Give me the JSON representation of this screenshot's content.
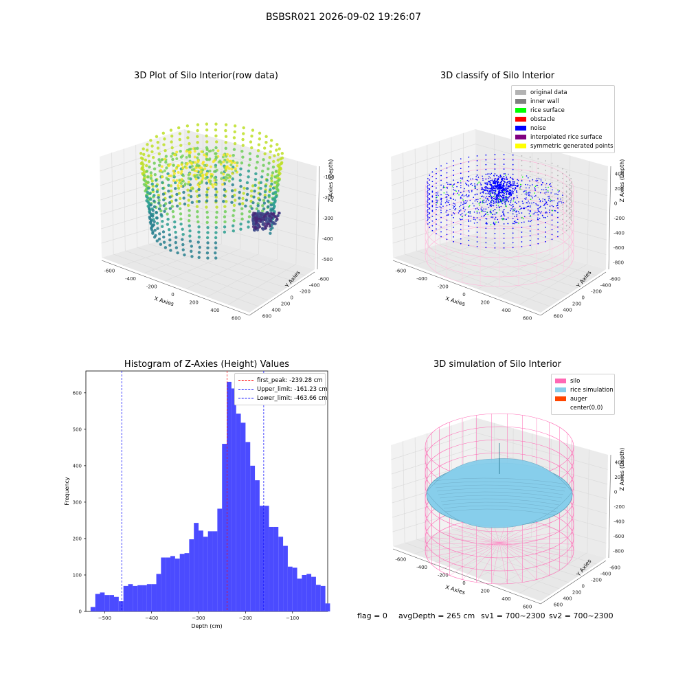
{
  "suptitle": "BSBSR021 2026-09-02 19:26:07",
  "panels": {
    "raw": {
      "title": "3D Plot of Silo Interior(row data)",
      "xlabel": "X Axies",
      "ylabel": "Y Axies",
      "zlabel": "Z Axies (Depth)",
      "xticks": [
        "-600",
        "-400",
        "-200",
        "0",
        "200",
        "400",
        "600"
      ],
      "yticks": [
        "-600",
        "-400",
        "-200",
        "0",
        "200",
        "400",
        "600"
      ],
      "zticks": [
        "-100",
        "-200",
        "-300",
        "-400",
        "-500"
      ]
    },
    "classify": {
      "title": "3D classify of Silo Interior",
      "xlabel": "X Axies",
      "ylabel": "Y Axies",
      "zlabel": "Z Axies (Depth)",
      "xticks": [
        "-600",
        "-400",
        "-200",
        "0",
        "200",
        "400",
        "600"
      ],
      "yticks": [
        "-600",
        "-400",
        "-200",
        "0",
        "200",
        "400",
        "600"
      ],
      "zticks": [
        "400",
        "200",
        "0",
        "-200",
        "-400",
        "-600",
        "-800"
      ],
      "legend": [
        {
          "label": "original data",
          "color": "#b3b3b3"
        },
        {
          "label": "inner wall",
          "color": "#808080"
        },
        {
          "label": "rice surface",
          "color": "#00ff00"
        },
        {
          "label": "obstacle",
          "color": "#ff0000"
        },
        {
          "label": "noise",
          "color": "#0000ff"
        },
        {
          "label": "interpolated rice surface",
          "color": "#800080"
        },
        {
          "label": "symmetric generated points",
          "color": "#ffff00"
        }
      ]
    },
    "simulation": {
      "title": "3D simulation of Silo Interior",
      "xlabel": "X Axies",
      "ylabel": "Y Axies",
      "zlabel": "Z Axies (Depth)",
      "xticks": [
        "-600",
        "-400",
        "-200",
        "0",
        "200",
        "400",
        "600"
      ],
      "yticks": [
        "-600",
        "-400",
        "-200",
        "0",
        "200",
        "400",
        "600"
      ],
      "zticks": [
        "400",
        "200",
        "0",
        "-200",
        "-400",
        "-600",
        "-800"
      ],
      "legend": [
        {
          "label": "silo",
          "color": "#ff69b4"
        },
        {
          "label": "rice simulation",
          "color": "#87ceeb"
        },
        {
          "label": "auger",
          "color": "#ff4500"
        },
        {
          "label": "center(0,0)",
          "color": ""
        }
      ]
    }
  },
  "footer": {
    "flag": "flag = 0",
    "avg": "avgDepth = 265 cm",
    "sv1": "sv1 = 700~2300",
    "sv2": "sv2 = 700~2300"
  },
  "chart_data": {
    "type": "bar",
    "title": "Histogram of Z-Axies (Height) Values",
    "xlabel": "Depth (cm)",
    "ylabel": "Frequency",
    "xlim": [
      -540,
      -25
    ],
    "ylim": [
      0,
      660
    ],
    "xticks": [
      -500,
      -400,
      -300,
      -200,
      -100
    ],
    "yticks": [
      0,
      100,
      200,
      300,
      400,
      500,
      600
    ],
    "bin_width": 10,
    "bin_start": -530,
    "values": [
      12,
      48,
      52,
      45,
      45,
      40,
      28,
      70,
      75,
      70,
      72,
      72,
      75,
      75,
      103,
      148,
      148,
      152,
      145,
      158,
      160,
      198,
      243,
      222,
      205,
      220,
      220,
      282,
      460,
      630,
      612,
      543,
      518,
      465,
      400,
      360,
      290,
      290,
      232,
      232,
      205,
      180,
      123,
      120,
      90,
      100,
      103,
      95,
      73,
      70,
      22
    ],
    "bar_color": "#4b4bff",
    "legend_position": "top-right",
    "lines": [
      {
        "label": "first_peak: -239.28 cm",
        "x": -239.28,
        "color": "#ff0000"
      },
      {
        "label": "Upper_limit: -161.23 cm",
        "x": -161.23,
        "color": "#0000ff"
      },
      {
        "label": "Lower_limit: -463.66 cm",
        "x": -463.66,
        "color": "#0000ff"
      }
    ]
  }
}
